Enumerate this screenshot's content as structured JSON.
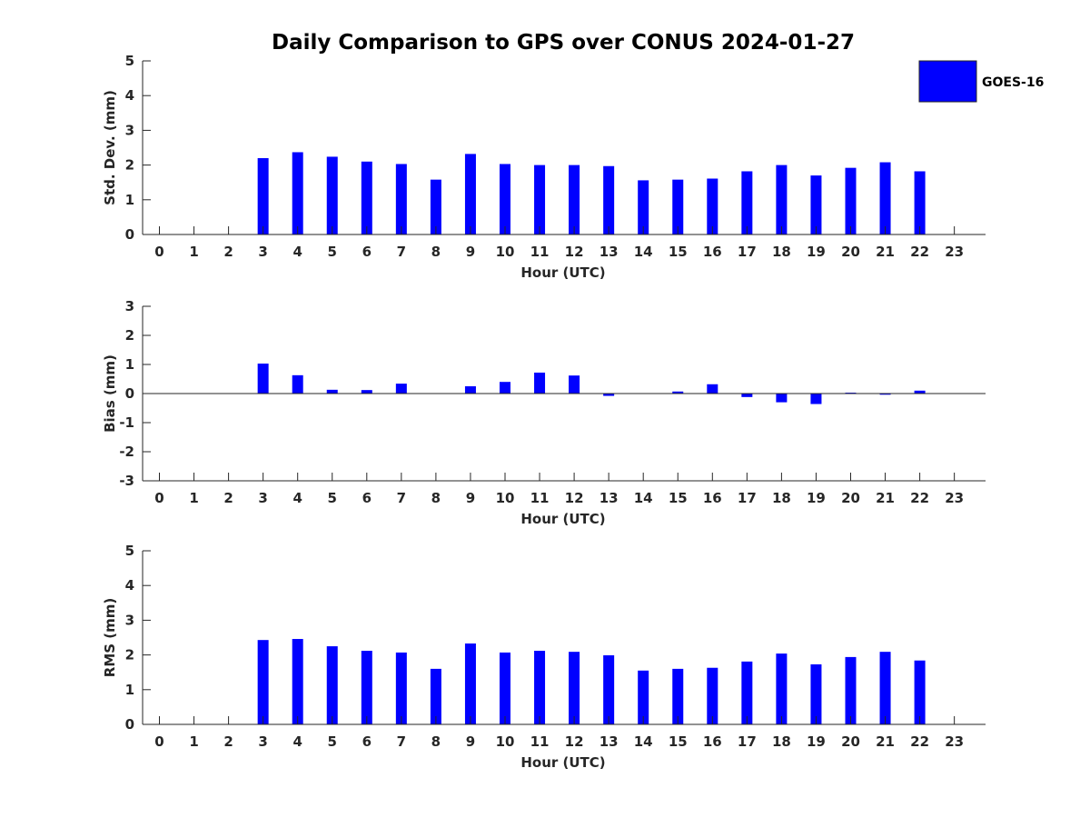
{
  "title": "Daily Comparison to GPS over CONUS 2024-01-27",
  "legend": {
    "label": "GOES-16",
    "color": "#0000ff",
    "position": "top-right"
  },
  "chart_data": [
    {
      "type": "bar",
      "xlabel": "Hour (UTC)",
      "ylabel": "Std. Dev. (mm)",
      "ylim": [
        0,
        5
      ],
      "yticks": [
        0,
        1,
        2,
        3,
        4,
        5
      ],
      "x": [
        0,
        1,
        2,
        3,
        4,
        5,
        6,
        7,
        8,
        9,
        10,
        11,
        12,
        13,
        14,
        15,
        16,
        17,
        18,
        19,
        20,
        21,
        22,
        23
      ],
      "values": [
        null,
        null,
        null,
        2.2,
        2.37,
        2.24,
        2.1,
        2.03,
        1.58,
        2.32,
        2.03,
        2.0,
        2.0,
        1.97,
        1.56,
        1.58,
        1.61,
        1.82,
        2.0,
        1.7,
        1.92,
        2.08,
        1.82,
        null
      ],
      "color": "#0000ff"
    },
    {
      "type": "bar",
      "xlabel": "Hour (UTC)",
      "ylabel": "Bias (mm)",
      "ylim": [
        -3,
        3
      ],
      "yticks": [
        -3,
        -2,
        -1,
        0,
        1,
        2,
        3
      ],
      "zero_line": true,
      "x": [
        0,
        1,
        2,
        3,
        4,
        5,
        6,
        7,
        8,
        9,
        10,
        11,
        12,
        13,
        14,
        15,
        16,
        17,
        18,
        19,
        20,
        21,
        22,
        23
      ],
      "values": [
        null,
        null,
        null,
        1.03,
        0.63,
        0.13,
        0.12,
        0.34,
        0.0,
        0.25,
        0.4,
        0.72,
        0.62,
        -0.08,
        0.0,
        0.07,
        0.32,
        -0.12,
        -0.3,
        -0.36,
        0.03,
        -0.04,
        0.1,
        null
      ],
      "color": "#0000ff"
    },
    {
      "type": "bar",
      "xlabel": "Hour (UTC)",
      "ylabel": "RMS (mm)",
      "ylim": [
        0,
        5
      ],
      "yticks": [
        0,
        1,
        2,
        3,
        4,
        5
      ],
      "x": [
        0,
        1,
        2,
        3,
        4,
        5,
        6,
        7,
        8,
        9,
        10,
        11,
        12,
        13,
        14,
        15,
        16,
        17,
        18,
        19,
        20,
        21,
        22,
        23
      ],
      "values": [
        null,
        null,
        null,
        2.43,
        2.46,
        2.25,
        2.12,
        2.07,
        1.6,
        2.33,
        2.07,
        2.12,
        2.09,
        1.99,
        1.55,
        1.6,
        1.63,
        1.81,
        2.04,
        1.73,
        1.94,
        2.09,
        1.84,
        null
      ],
      "color": "#0000ff"
    }
  ]
}
